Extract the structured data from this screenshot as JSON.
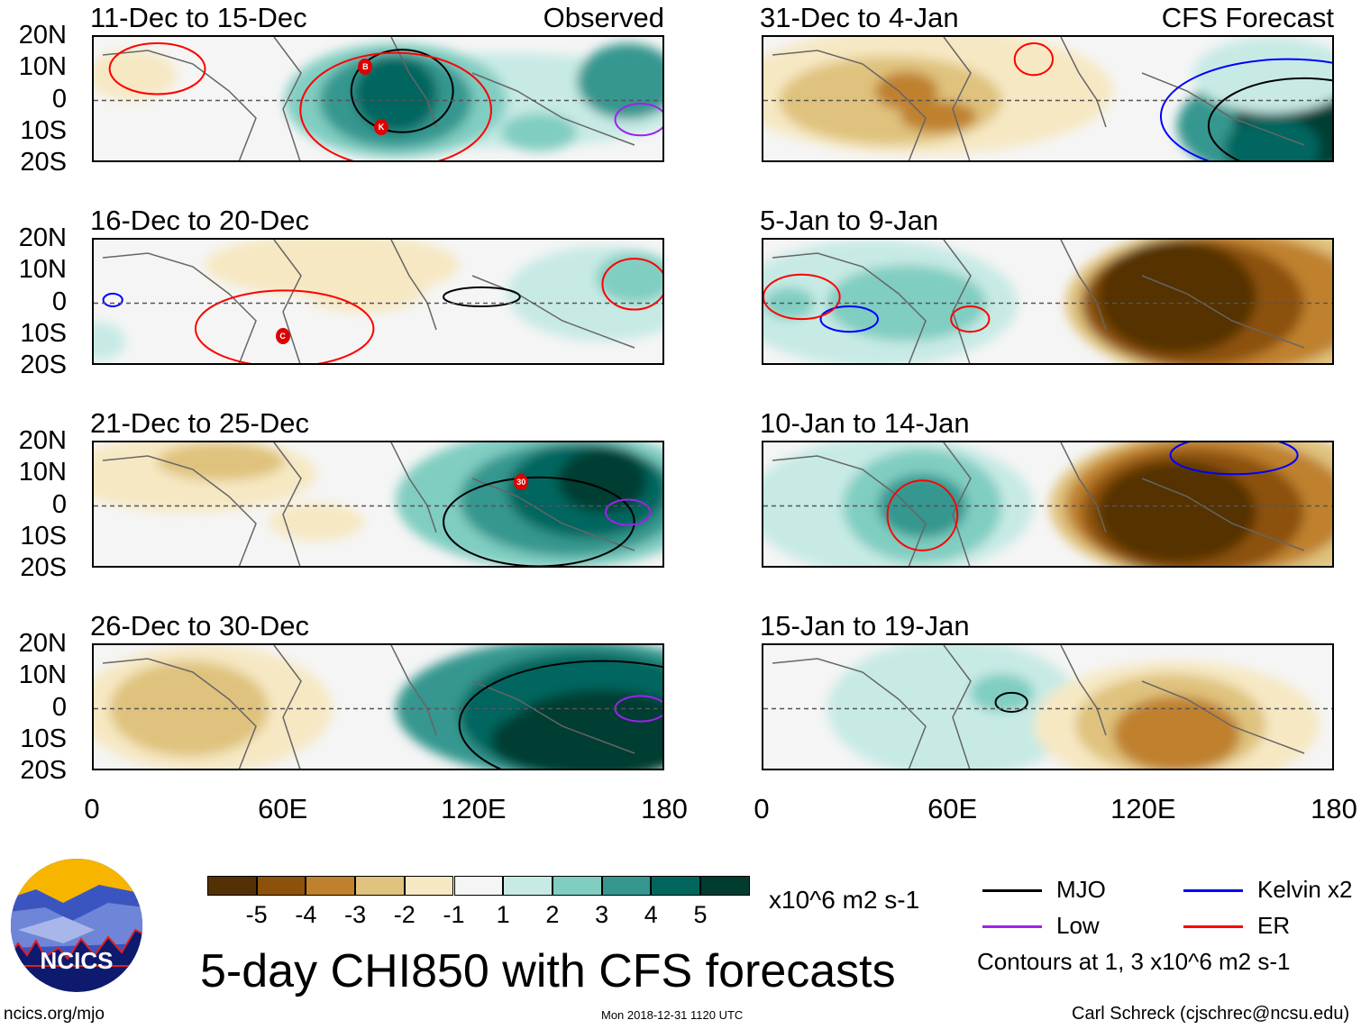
{
  "panels": [
    {
      "id": "p1",
      "title": "11-Dec to 15-Dec",
      "label": "Observed",
      "column": "left",
      "row": 0
    },
    {
      "id": "p2",
      "title": "16-Dec to 20-Dec",
      "label": "",
      "column": "left",
      "row": 1
    },
    {
      "id": "p3",
      "title": "21-Dec to 25-Dec",
      "label": "",
      "column": "left",
      "row": 2
    },
    {
      "id": "p4",
      "title": "26-Dec to 30-Dec",
      "label": "",
      "column": "left",
      "row": 3
    },
    {
      "id": "p5",
      "title": "31-Dec to 4-Jan",
      "label": "CFS Forecast",
      "column": "right",
      "row": 0
    },
    {
      "id": "p6",
      "title": "5-Jan to 9-Jan",
      "label": "",
      "column": "right",
      "row": 1
    },
    {
      "id": "p7",
      "title": "10-Jan to 14-Jan",
      "label": "",
      "column": "right",
      "row": 2
    },
    {
      "id": "p8",
      "title": "15-Jan to 19-Jan",
      "label": "",
      "column": "right",
      "row": 3
    }
  ],
  "lat_labels": [
    "20N",
    "10N",
    "0",
    "10S",
    "20S"
  ],
  "lon_labels": [
    "0",
    "60E",
    "120E",
    "180"
  ],
  "storm_labels": [
    "B",
    "K",
    "C",
    "30"
  ],
  "colorbar": {
    "colors": [
      "#543005",
      "#8c510a",
      "#bf812d",
      "#dfc27d",
      "#f6e8c3",
      "#f5f5f5",
      "#c7eae5",
      "#80cdc1",
      "#35978f",
      "#01665e",
      "#003c30"
    ],
    "labels": [
      "-5",
      "-4",
      "-3",
      "-2",
      "-1",
      "1",
      "2",
      "3",
      "4",
      "5"
    ],
    "units": "x10^6 m2 s-1"
  },
  "legend": {
    "items": [
      {
        "label": "MJO",
        "color": "#000000"
      },
      {
        "label": "Kelvin x2",
        "color": "#0000ff"
      },
      {
        "label": "Low",
        "color": "#a020f0"
      },
      {
        "label": "ER",
        "color": "#ff0000"
      }
    ],
    "note": "Contours at 1, 3 x10^6 m2 s-1"
  },
  "main_title": "5-day CHI850 with CFS forecasts",
  "logo_text": "NCICS",
  "footer": {
    "url": "ncics.org/mjo",
    "timestamp": "Mon 2018-12-31 1120 UTC",
    "credit": "Carl Schreck (cjschrec@ncsu.edu)"
  }
}
